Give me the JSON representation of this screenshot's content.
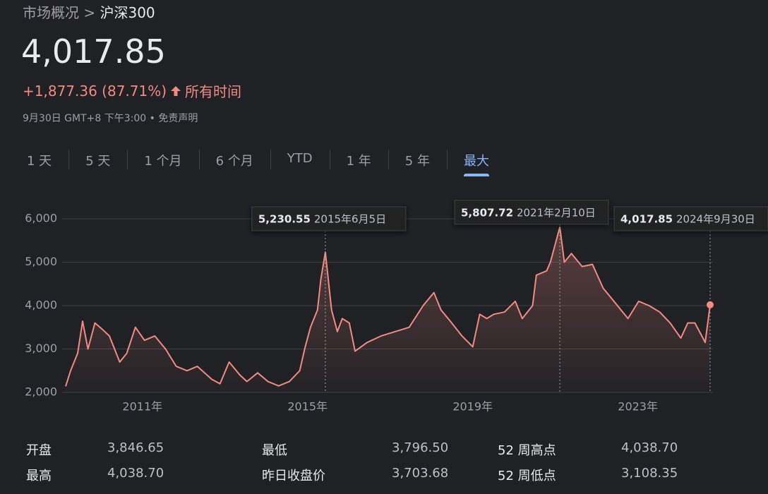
{
  "header": {
    "breadcrumb": [
      "市场概况",
      ">",
      "沪深300"
    ],
    "price": "4,017.85",
    "change": "+1,877.36 (87.71%)",
    "period": "所有时间",
    "subtitle": "9月30日 GMT+8 下午3:00 • 免责声明"
  },
  "tabs": [
    "1 天",
    "5 天",
    "1 个月",
    "6 个月",
    "YTD",
    "1 年",
    "5 年",
    "最大"
  ],
  "active_tab": "最大",
  "chart_data": {
    "type": "line",
    "color": "#f28b82",
    "x": [
      2009.14,
      2009.26,
      2009.43,
      2009.55,
      2009.68,
      2009.85,
      2010.03,
      2010.2,
      2010.45,
      2010.62,
      2010.83,
      2011.05,
      2011.3,
      2011.56,
      2011.82,
      2012.08,
      2012.33,
      2012.68,
      2012.88,
      2013.1,
      2013.36,
      2013.53,
      2013.79,
      2014.04,
      2014.3,
      2014.56,
      2014.81,
      2014.93,
      2015.07,
      2015.24,
      2015.32,
      2015.43,
      2015.58,
      2015.72,
      2015.84,
      2016.01,
      2016.15,
      2016.44,
      2016.78,
      2017.12,
      2017.46,
      2017.8,
      2018.06,
      2018.23,
      2018.49,
      2018.74,
      2019.0,
      2019.17,
      2019.34,
      2019.51,
      2019.77,
      2020.03,
      2020.2,
      2020.45,
      2020.54,
      2020.79,
      2020.88,
      2021.11,
      2021.22,
      2021.39,
      2021.65,
      2021.9,
      2022.16,
      2022.42,
      2022.76,
      2023.02,
      2023.27,
      2023.53,
      2023.78,
      2024.04,
      2024.21,
      2024.38,
      2024.55,
      2024.63,
      2024.75
    ],
    "values": [
      2140,
      2500,
      2900,
      3640,
      3000,
      3600,
      3450,
      3300,
      2700,
      2900,
      3500,
      3200,
      3300,
      3000,
      2600,
      2500,
      2600,
      2300,
      2200,
      2700,
      2400,
      2250,
      2450,
      2250,
      2150,
      2250,
      2500,
      3000,
      3500,
      3900,
      4600,
      5230.55,
      3900,
      3400,
      3700,
      3600,
      2950,
      3150,
      3300,
      3400,
      3500,
      4000,
      4300,
      3900,
      3600,
      3300,
      3050,
      3800,
      3700,
      3800,
      3850,
      4100,
      3700,
      4000,
      4700,
      4800,
      5000,
      5807.72,
      5000,
      5200,
      4900,
      4950,
      4400,
      4100,
      3700,
      4100,
      4000,
      3850,
      3600,
      3250,
      3600,
      3600,
      3300,
      3150,
      4017.85
    ],
    "xlim": [
      2009.14,
      2024.75
    ],
    "xticks": [
      {
        "value": 2011,
        "label": "2011年"
      },
      {
        "value": 2015,
        "label": "2015年"
      },
      {
        "value": 2019,
        "label": "2019年"
      },
      {
        "value": 2023,
        "label": "2023年"
      }
    ],
    "ylim": [
      2000,
      6000
    ],
    "yticks": [
      {
        "value": 2000,
        "label": "2,000"
      },
      {
        "value": 3000,
        "label": "3,000"
      },
      {
        "value": 4000,
        "label": "4,000"
      },
      {
        "value": 5000,
        "label": "5,000"
      },
      {
        "value": 6000,
        "label": "6,000"
      }
    ],
    "grid": true,
    "annotations": [
      {
        "value": 5230.55,
        "label": "5,230.55",
        "date": "2015年6月5日"
      },
      {
        "value": 5807.72,
        "label": "5,807.72",
        "date": "2021年2月10日"
      },
      {
        "value": 4017.85,
        "label": "4,017.85",
        "date": "2024年9月30日"
      }
    ]
  },
  "stats": {
    "rows": [
      [
        "开盘",
        "3,846.65",
        "最低",
        "3,796.50",
        "52 周高点",
        "4,038.70"
      ],
      [
        "最高",
        "4,038.70",
        "昨日收盘价",
        "3,703.68",
        "52 周低点",
        "3,108.35"
      ]
    ]
  }
}
